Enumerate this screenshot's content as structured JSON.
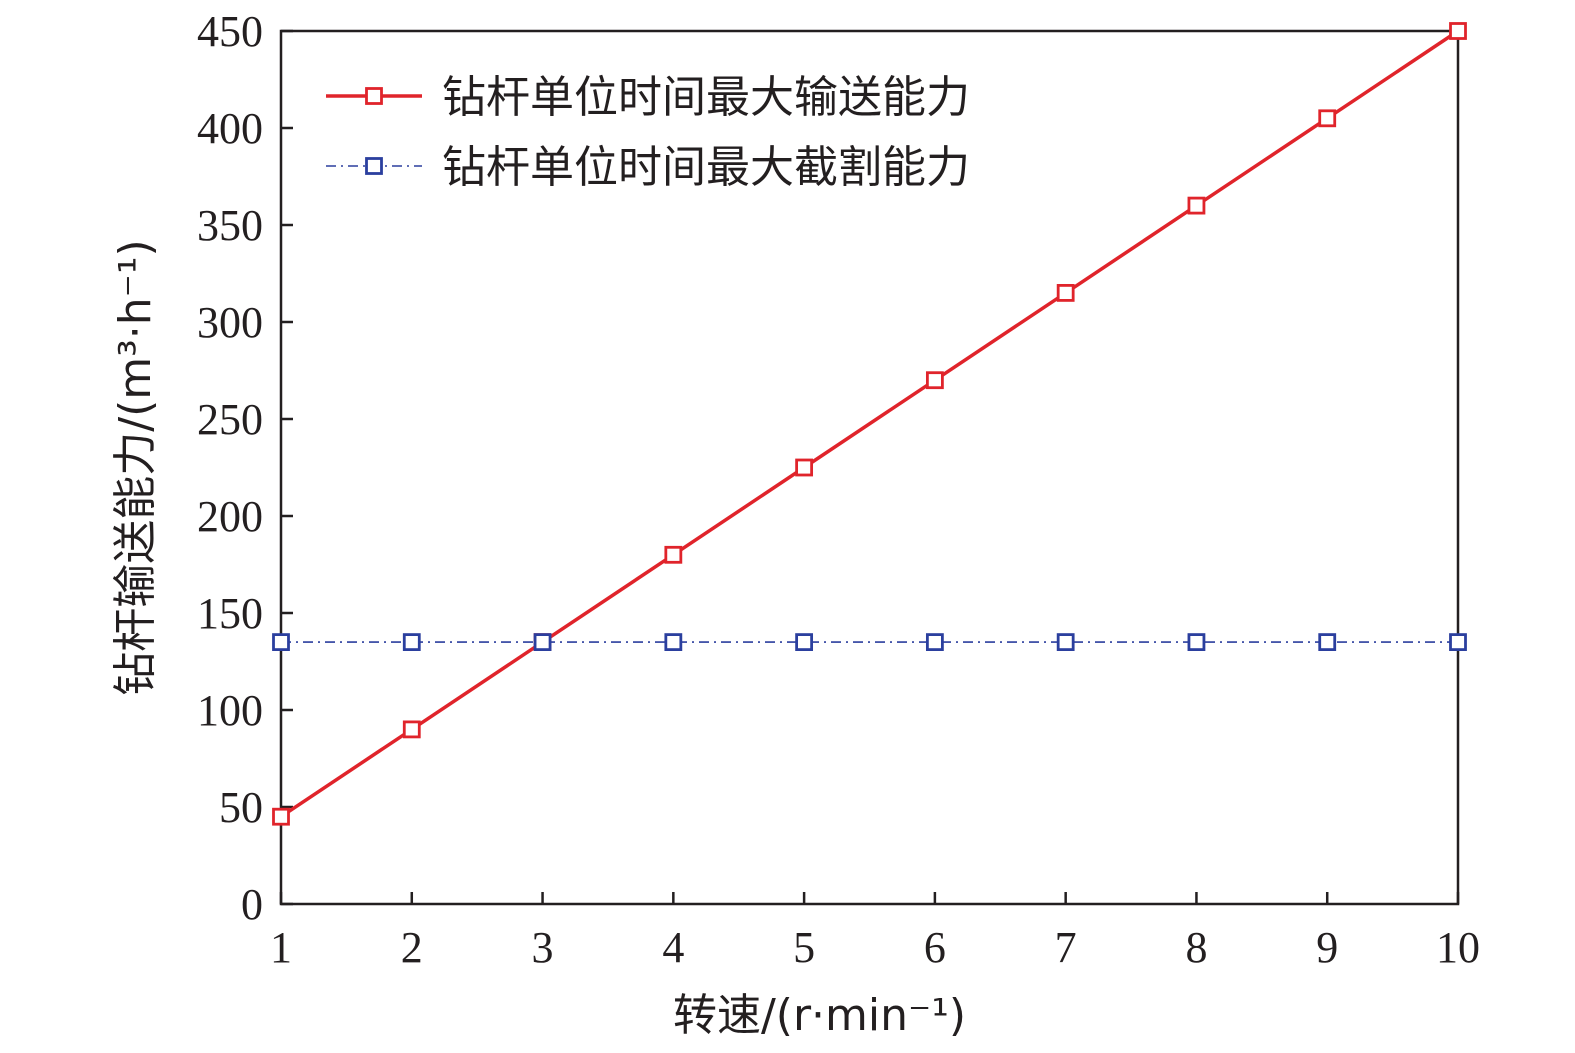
{
  "chart_data": {
    "type": "line",
    "x": [
      1,
      2,
      3,
      4,
      5,
      6,
      7,
      8,
      9,
      10
    ],
    "xlabel": "转速/(r·min⁻¹)",
    "ylabel": "钻杆输送能力/(m³·h⁻¹)",
    "xlim": [
      1,
      10
    ],
    "ylim": [
      0,
      450
    ],
    "xticks": [
      "1",
      "2",
      "3",
      "4",
      "5",
      "6",
      "7",
      "8",
      "9",
      "10"
    ],
    "yticks": [
      "0",
      "50",
      "100",
      "150",
      "200",
      "250",
      "300",
      "350",
      "400",
      "450"
    ],
    "grid": false,
    "legend_position": "top-left",
    "series": [
      {
        "name": "钻杆单位时间最大输送能力",
        "values": [
          45,
          90,
          135,
          180,
          225,
          270,
          315,
          360,
          405,
          450
        ],
        "color": "#e0242b",
        "line_style": "solid",
        "marker": "square"
      },
      {
        "name": "钻杆单位时间最大截割能力",
        "values": [
          135,
          135,
          135,
          135,
          135,
          135,
          135,
          135,
          135,
          135
        ],
        "color": "#2b3f9e",
        "line_style": "dash-dot",
        "marker": "square"
      }
    ]
  }
}
